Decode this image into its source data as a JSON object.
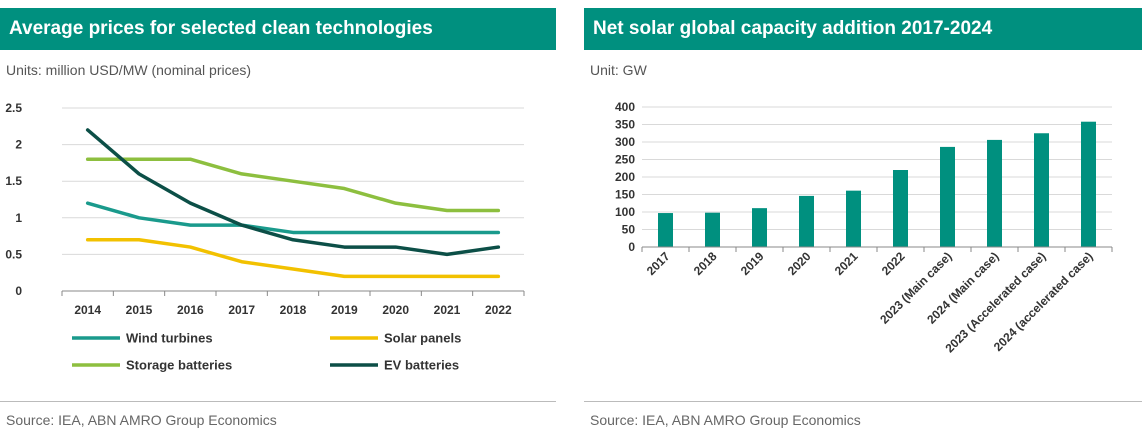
{
  "left": {
    "title": "Average prices for selected clean technologies",
    "units": "Units: million USD/MW (nominal prices)",
    "source": "Source: IEA, ABN AMRO Group Economics"
  },
  "right": {
    "title": "Net solar global capacity addition 2017-2024",
    "units": "Unit: GW",
    "source": "Source: IEA, ABN AMRO Group Economics"
  },
  "chart_data": [
    {
      "type": "line",
      "title": "Average prices for selected clean technologies",
      "ylabel": "Units: million USD/MW (nominal prices)",
      "x": [
        "2014",
        "2015",
        "2016",
        "2017",
        "2018",
        "2019",
        "2020",
        "2021",
        "2022"
      ],
      "ylim": [
        0,
        2.5
      ],
      "yticks": [
        "0",
        "0.5",
        "1",
        "1.5",
        "2",
        "2.5"
      ],
      "grid": true,
      "legend": "bottom",
      "series": [
        {
          "name": "Wind turbines",
          "color": "#1a9a8c",
          "values": [
            1.2,
            1.0,
            0.9,
            0.9,
            0.8,
            0.8,
            0.8,
            0.8,
            0.8
          ]
        },
        {
          "name": "Solar panels",
          "color": "#f2c100",
          "values": [
            0.7,
            0.7,
            0.6,
            0.4,
            0.3,
            0.2,
            0.2,
            0.2,
            0.2
          ]
        },
        {
          "name": "Storage batteries",
          "color": "#8dbf3f",
          "values": [
            1.8,
            1.8,
            1.8,
            1.6,
            1.5,
            1.4,
            1.2,
            1.1,
            1.1
          ]
        },
        {
          "name": "EV batteries",
          "color": "#0c4f47",
          "values": [
            2.2,
            1.6,
            1.2,
            0.9,
            0.7,
            0.6,
            0.6,
            0.5,
            0.6
          ]
        }
      ]
    },
    {
      "type": "bar",
      "title": "Net solar global capacity addition 2017-2024",
      "ylabel": "Unit: GW",
      "categories": [
        "2017",
        "2018",
        "2019",
        "2020",
        "2021",
        "2022",
        "2023 (Main case)",
        "2024 (Main case)",
        "2023 (Accelerated case)",
        "2024 (accelerated case)"
      ],
      "values": [
        97,
        98,
        111,
        146,
        161,
        220,
        286,
        306,
        325,
        358
      ],
      "ylim": [
        0,
        400
      ],
      "yticks": [
        "0",
        "50",
        "100",
        "150",
        "200",
        "250",
        "300",
        "350",
        "400"
      ],
      "grid": true,
      "color": "#00907f"
    }
  ]
}
